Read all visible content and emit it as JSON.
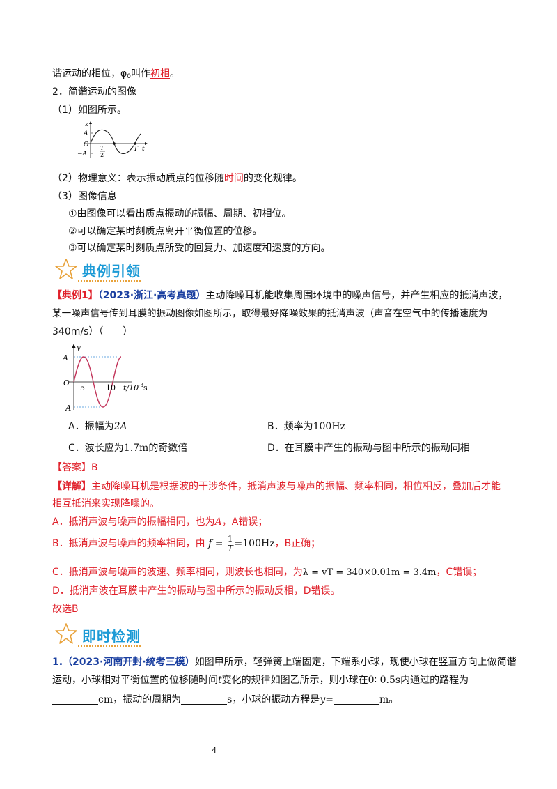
{
  "top": {
    "line1_a": "谐运动的相位，φ",
    "line1_sub": "0",
    "line1_b": "叫作",
    "line1_red": "初相",
    "line1_c": "。",
    "heading2": "2．简谐运动的图像",
    "item1": "（1）如图所示。",
    "graph1": {
      "y_axis": "x",
      "amp": "A",
      "neg_amp": "−A",
      "origin": "O",
      "t_axis": "t",
      "half_num": "T",
      "half_den": "2",
      "period": "T"
    },
    "item2_a": "（2）物理意义：表示振动质点的位移随",
    "item2_red": "时间",
    "item2_b": "的变化规律。",
    "item3": "（3）图像信息",
    "info1": "①由图像可以看出质点振动的振幅、周期、初相位。",
    "info2": "②可以确定某时刻质点离开平衡位置的位移。",
    "info3": "③可以确定某时刻质点所受的回复力、加速度和速度的方向。"
  },
  "section1": {
    "title": "典例引领"
  },
  "example": {
    "label": "【典例1】",
    "source": "（2023·浙江·高考真题）",
    "text1": "主动降噪耳机能收集周围环境中的噪声信号，并产生相应的抵消声波，",
    "text2": "某一噪声信号传到耳膜的振动图像如图所示，取得最好降噪效果的抵消声波（声音在空气中的传播速度为",
    "text3": "340m/s）（　　）",
    "graph2": {
      "y_axis": "y",
      "amp": "A",
      "neg_amp": "−A",
      "origin": "O",
      "tick5": "5",
      "tick10": "10",
      "t_label": "t/10",
      "t_exp": "-3",
      "t_unit": "s"
    },
    "optA_label": "A．振幅为",
    "optA_val": "2A",
    "optB_label": "B．频率为",
    "optB_val": "100Hz",
    "optC_label": "C．波长应为",
    "optC_val": "1.7m",
    "optC_tail": "的奇数倍",
    "optD": "D．在耳膜中产生的振动与图中所示的振动同相"
  },
  "answer": {
    "label": "【答案】B",
    "detail_label": "【详解】",
    "detail1": "主动降噪耳机是根据波的干涉条件，抵消声波与噪声的振幅、频率相同，相位相反，叠加后才能",
    "detail2": "相互抵消来实现降噪的。",
    "a_text": "A．抵消声波与噪声的振幅相同，也为",
    "a_var": "A",
    "a_tail": "，A错误；",
    "b_text": "B．抵消声波与噪声的频率相同，由",
    "b_f": "f",
    "b_num": "1",
    "b_den": "T",
    "b_val": "=100Hz",
    "b_tail": "，B正确；",
    "c_text": "C．抵消声波与噪声的波速、频率相同，则波长也相同，为",
    "c_formula": "λ = vT = 340×0.01m = 3.4m",
    "c_tail": "，C错误；",
    "d_text": "D．抵消声波在耳膜中产生的振动与图中所示的振动反相，D错误。",
    "conclusion": "故选B"
  },
  "section2": {
    "title": "即时检测"
  },
  "question": {
    "label": "1.",
    "source": "（2023·河南开封·统考三模）",
    "text1": "如图甲所示，轻弹簧上端固定，下端系小球，现使小球在竖直方向上做简谐",
    "text2_a": "运动，小球相对平衡位置的位移随时间",
    "text2_t": "t",
    "text2_b": "变化的规律如图乙所示，则小球在",
    "text2_range": "0∶ 0.5s",
    "text2_c": "内通过的路程为",
    "unit1": "cm",
    "text3_a": "，振动的周期为",
    "unit2": "s",
    "text3_b": "，小球的振动方程是",
    "text3_y": "y",
    "text3_eq": "=",
    "unit3": "m",
    "text3_end": "。"
  },
  "footer": {
    "page_number": "4"
  },
  "colors": {
    "accent_red": "#e0202a",
    "section_blue": "#1b9ad6",
    "label_blue": "#1a3fa0",
    "curve": "#c2345a"
  }
}
